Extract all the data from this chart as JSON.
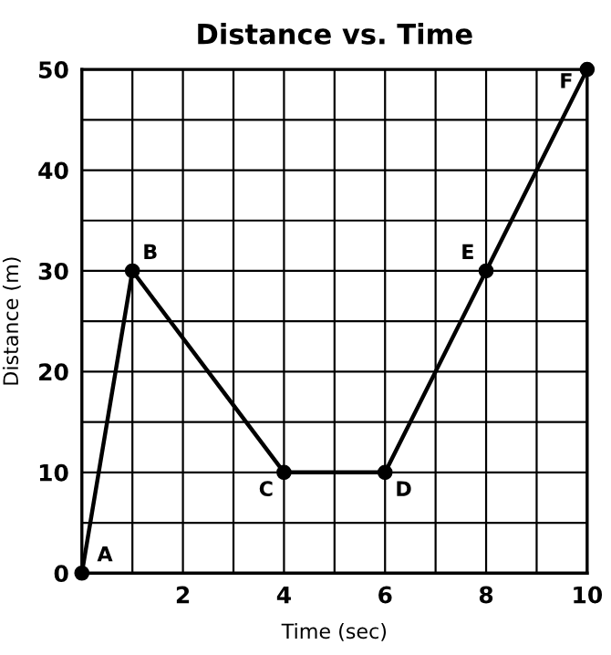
{
  "chart_data": {
    "type": "line",
    "title": "Distance vs. Time",
    "xlabel": "Time (sec)",
    "ylabel": "Distance (m)",
    "x": [
      0,
      1,
      4,
      6,
      8,
      10
    ],
    "series": [
      {
        "color": "#000000",
        "values": [
          0,
          30,
          10,
          10,
          30,
          50
        ]
      }
    ],
    "marker": "circle",
    "line_style": "solid",
    "grid": true,
    "xlim": [
      0,
      10
    ],
    "ylim": [
      0,
      50
    ],
    "xticks": [
      {
        "value": 0,
        "label": null
      },
      {
        "value": 1,
        "label": null
      },
      2,
      {
        "value": 3,
        "label": null
      },
      4,
      {
        "value": 5,
        "label": null
      },
      6,
      {
        "value": 7,
        "label": null
      },
      8,
      {
        "value": 9,
        "label": null
      },
      10
    ],
    "yticks": [
      0,
      {
        "value": 5,
        "label": null
      },
      10,
      {
        "value": 15,
        "label": null
      },
      20,
      {
        "value": 25,
        "label": null
      },
      30,
      {
        "value": 35,
        "label": null
      },
      40,
      {
        "value": 45,
        "label": null
      },
      50
    ],
    "annotations": [
      {
        "text": "A",
        "x": 0,
        "y": 0
      },
      {
        "text": "B",
        "x": 1,
        "y": 30
      },
      {
        "text": "C",
        "x": 4,
        "y": 10
      },
      {
        "text": "D",
        "x": 6,
        "y": 10
      },
      {
        "text": "E",
        "x": 8,
        "y": 30
      },
      {
        "text": "F",
        "x": 10,
        "y": 50
      }
    ]
  }
}
